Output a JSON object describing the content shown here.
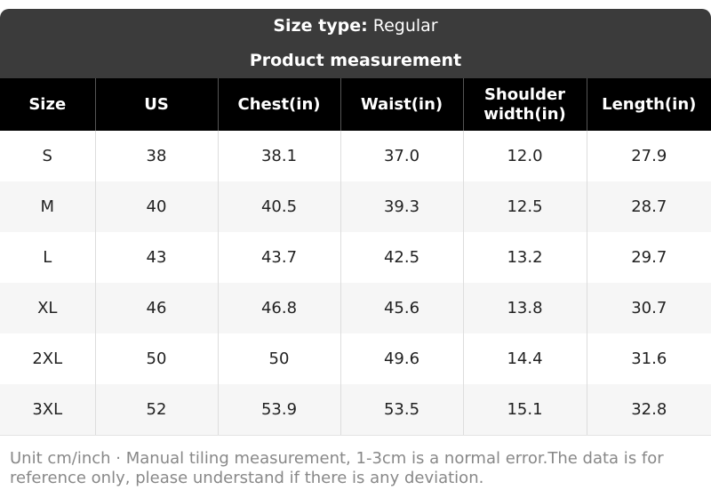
{
  "header": {
    "size_type_label": "Size type:",
    "size_type_value": "Regular",
    "title": "Product measurement"
  },
  "table": {
    "columns": [
      "Size",
      "US",
      "Chest(in)",
      "Waist(in)",
      "Shoulder width(in)",
      "Length(in)"
    ],
    "rows": [
      [
        "S",
        "38",
        "38.1",
        "37.0",
        "12.0",
        "27.9"
      ],
      [
        "M",
        "40",
        "40.5",
        "39.3",
        "12.5",
        "28.7"
      ],
      [
        "L",
        "43",
        "43.7",
        "42.5",
        "13.2",
        "29.7"
      ],
      [
        "XL",
        "46",
        "46.8",
        "45.6",
        "13.8",
        "30.7"
      ],
      [
        "2XL",
        "50",
        "50",
        "49.6",
        "14.4",
        "31.6"
      ],
      [
        "3XL",
        "52",
        "53.9",
        "53.5",
        "15.1",
        "32.8"
      ]
    ]
  },
  "footer": {
    "note": "Unit cm/inch · Manual tiling measurement, 1-3cm is a normal error.The data is for reference only, please understand if there is any deviation."
  }
}
